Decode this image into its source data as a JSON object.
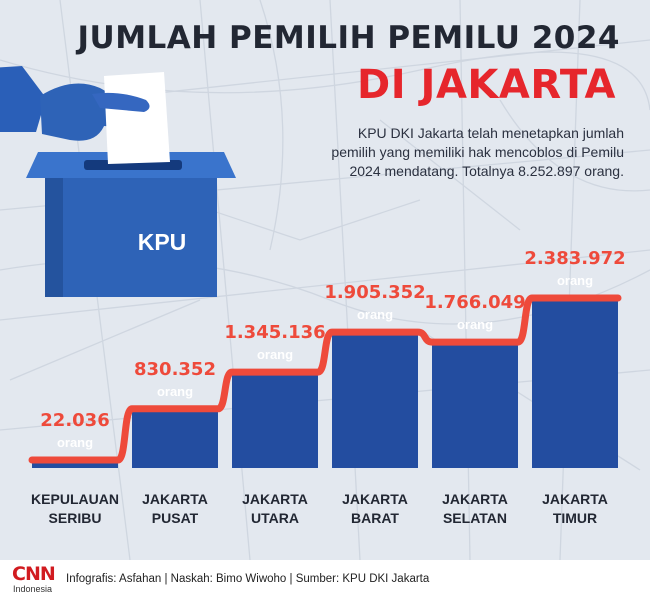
{
  "header": {
    "title_line1": "JUMLAH PEMILIH PEMILU 2024",
    "title_line2": "DI JAKARTA",
    "description": "KPU DKI Jakarta telah menetapkan jumlah pemilih yang memiliki hak mencoblos di Pemilu 2024 mendatang. Totalnya 8.252.897 orang."
  },
  "ballot_box": {
    "label": "KPU",
    "color": "#2e63b7"
  },
  "colors": {
    "bar": "#234da0",
    "line": "#ee4a3b",
    "value_text": "#ee4a3b",
    "unit_text": "#ffffff",
    "category_text": "#222733",
    "background": "#e3e8ef"
  },
  "chart_data": {
    "type": "bar",
    "title": "JUMLAH PEMILIH PEMILU 2024 DI JAKARTA",
    "categories": [
      [
        "KEPULAUAN",
        "SERIBU"
      ],
      [
        "JAKARTA",
        "PUSAT"
      ],
      [
        "JAKARTA",
        "UTARA"
      ],
      [
        "JAKARTA",
        "BARAT"
      ],
      [
        "JAKARTA",
        "SELATAN"
      ],
      [
        "JAKARTA",
        "TIMUR"
      ]
    ],
    "values": [
      22036,
      830352,
      1345136,
      1905352,
      1766049,
      2383972
    ],
    "value_labels": [
      "22.036",
      "830.352",
      "1.345.136",
      "1.905.352",
      "1.766.049",
      "2.383.972"
    ],
    "unit_label": "orang",
    "total_label": "8.252.897",
    "ylim": [
      0,
      2383972
    ],
    "axis_visible": false,
    "grid": false
  },
  "footer": {
    "logo_text": "CNN",
    "logo_subtext": "Indonesia",
    "credits": "Infografis: Asfahan | Naskah: Bimo Wiwoho | Sumber: KPU DKI Jakarta"
  }
}
